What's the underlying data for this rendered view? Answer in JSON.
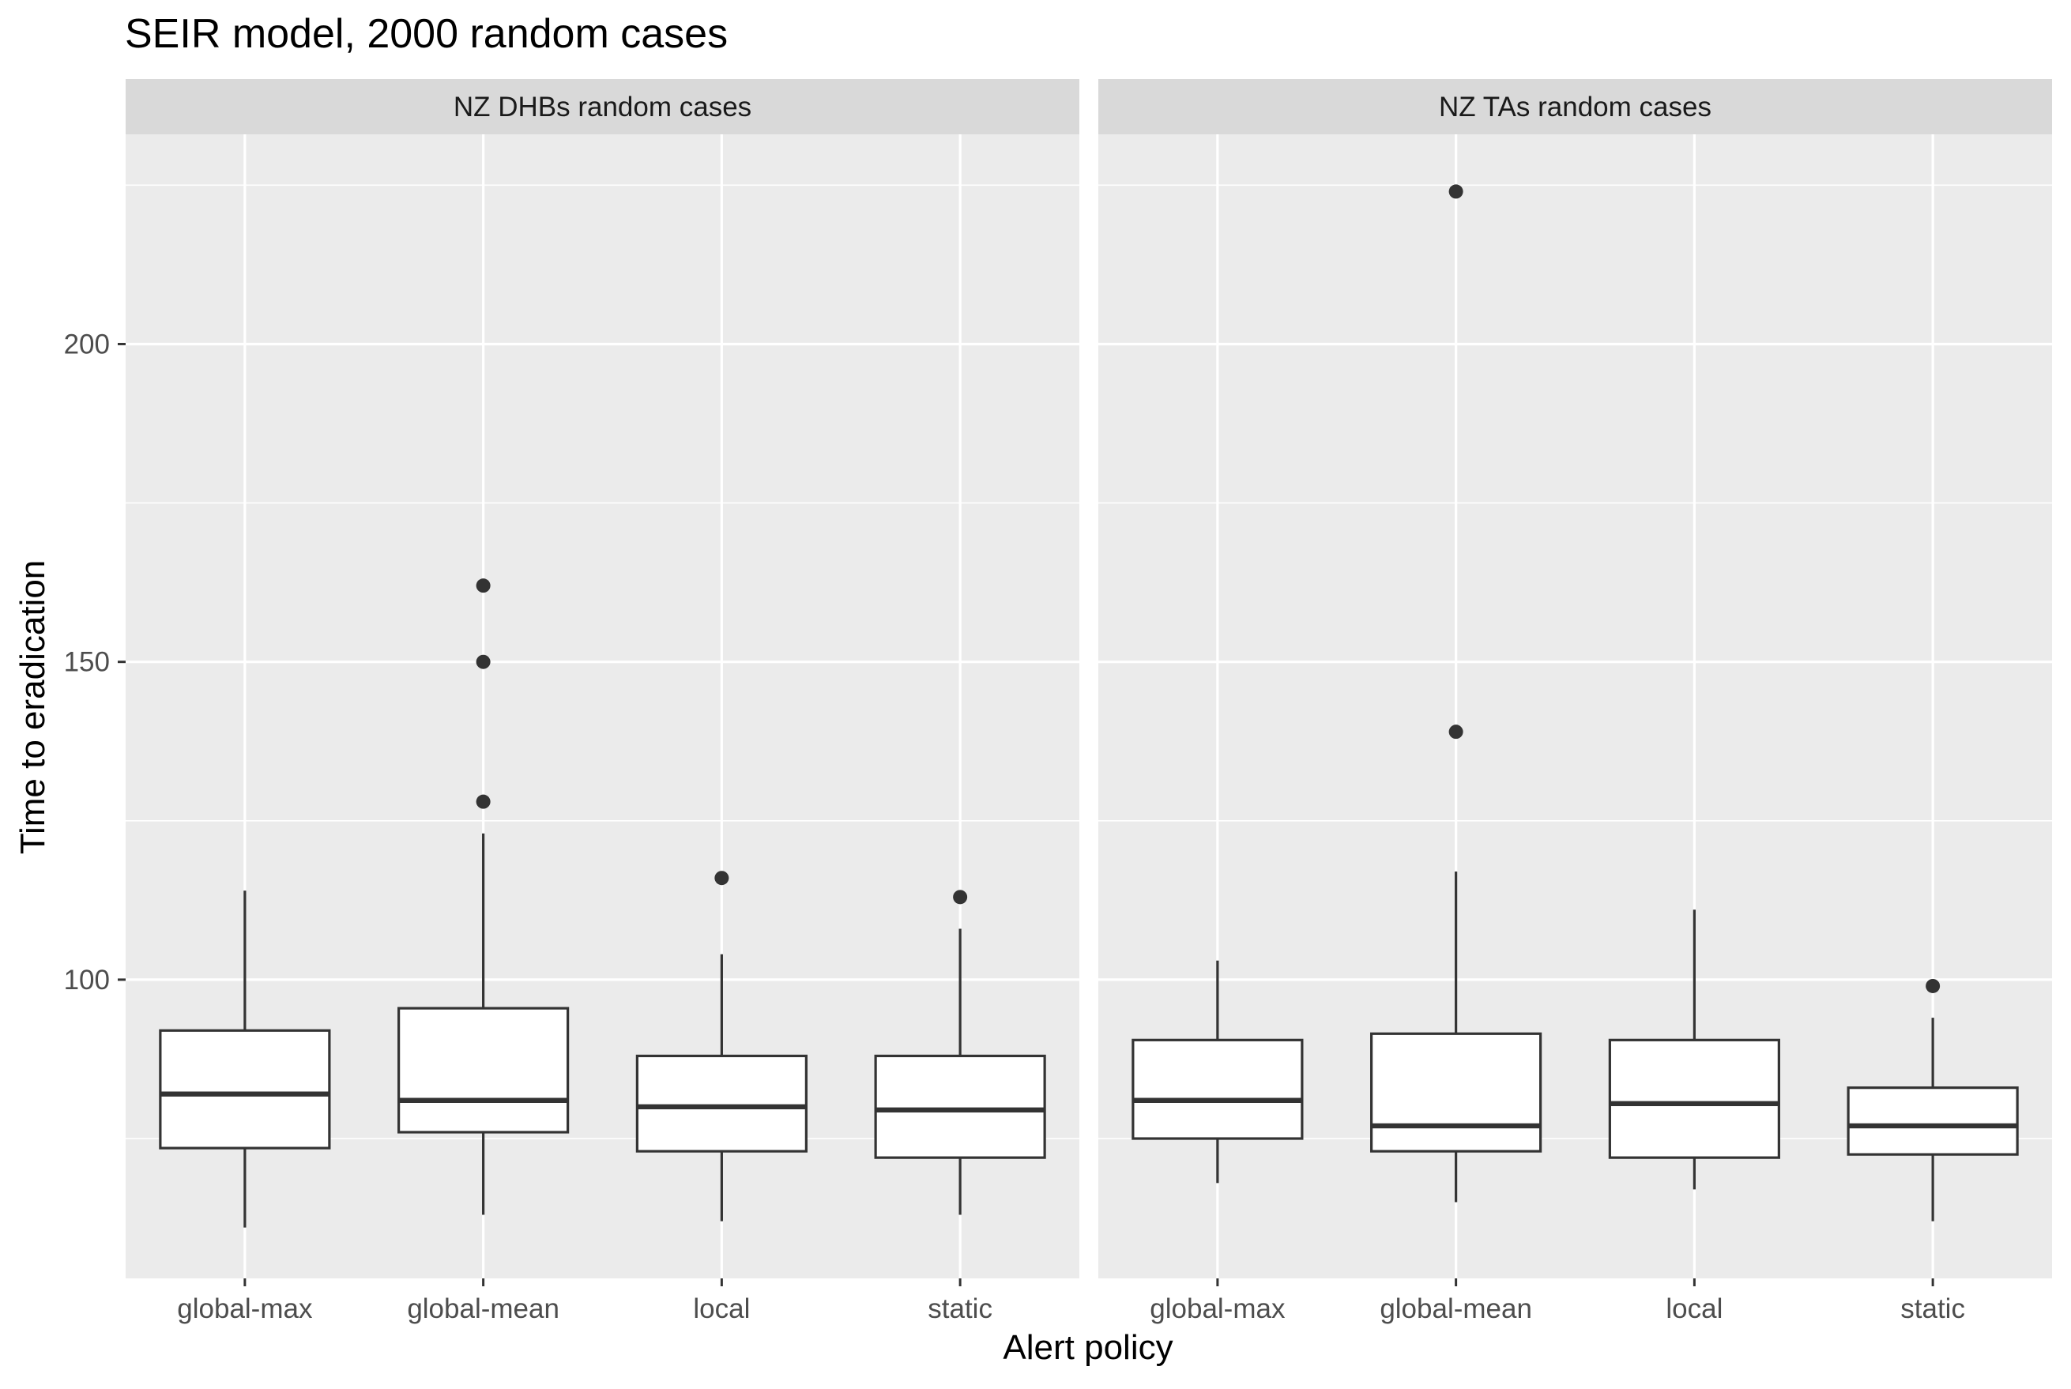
{
  "chart_data": {
    "type": "boxplot",
    "title": "SEIR model, 2000 random cases",
    "xlabel": "Alert policy",
    "ylabel": "Time to eradication",
    "ylim": [
      53,
      233
    ],
    "y_ticks": [
      100,
      150,
      200
    ],
    "y_minor_ticks": [
      75,
      125,
      175,
      225
    ],
    "categories": [
      "global-max",
      "global-mean",
      "local",
      "static"
    ],
    "grid": true,
    "panels": [
      {
        "label": "NZ DHBs random cases",
        "boxes": [
          {
            "category": "global-max",
            "whisker_low": 61,
            "q1": 73.5,
            "median": 82,
            "q3": 92,
            "whisker_high": 114,
            "outliers": []
          },
          {
            "category": "global-mean",
            "whisker_low": 63,
            "q1": 76,
            "median": 81,
            "q3": 95.5,
            "whisker_high": 123,
            "outliers": [
              128,
              150,
              162
            ]
          },
          {
            "category": "local",
            "whisker_low": 62,
            "q1": 73,
            "median": 80,
            "q3": 88,
            "whisker_high": 104,
            "outliers": [
              116
            ]
          },
          {
            "category": "static",
            "whisker_low": 63,
            "q1": 72,
            "median": 79.5,
            "q3": 88,
            "whisker_high": 108,
            "outliers": [
              113
            ]
          }
        ]
      },
      {
        "label": "NZ TAs random cases",
        "boxes": [
          {
            "category": "global-max",
            "whisker_low": 68,
            "q1": 75,
            "median": 81,
            "q3": 90.5,
            "whisker_high": 103,
            "outliers": []
          },
          {
            "category": "global-mean",
            "whisker_low": 65,
            "q1": 73,
            "median": 77,
            "q3": 91.5,
            "whisker_high": 117,
            "outliers": [
              139,
              224
            ]
          },
          {
            "category": "local",
            "whisker_low": 67,
            "q1": 72,
            "median": 80.5,
            "q3": 90.5,
            "whisker_high": 111,
            "outliers": []
          },
          {
            "category": "static",
            "whisker_low": 62,
            "q1": 72.5,
            "median": 77,
            "q3": 83,
            "whisker_high": 94,
            "outliers": [
              99
            ]
          }
        ]
      }
    ]
  }
}
